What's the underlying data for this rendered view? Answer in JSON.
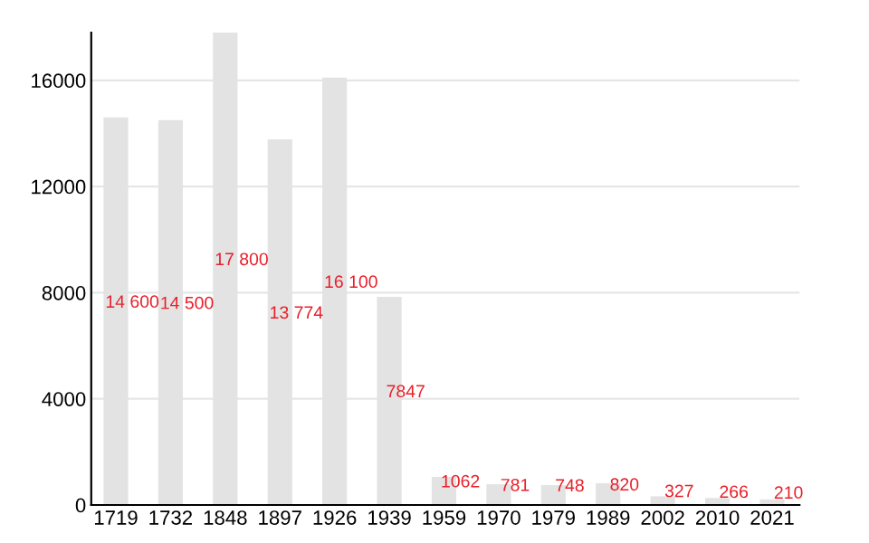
{
  "chart_data": {
    "type": "bar",
    "categories": [
      "1719",
      "1732",
      "1848",
      "1897",
      "1926",
      "1939",
      "1959",
      "1970",
      "1979",
      "1989",
      "2002",
      "2010",
      "2021"
    ],
    "values": [
      14600,
      14500,
      17800,
      13774,
      16100,
      7847,
      1062,
      781,
      748,
      820,
      327,
      266,
      210
    ],
    "value_labels": [
      "14 600",
      "14 500",
      "17 800",
      "13 774",
      "16 100",
      "7847",
      "1062",
      "781",
      "748",
      "820",
      "327",
      "266",
      "210"
    ],
    "color": "#e3e3e3",
    "ylim": [
      0,
      17800
    ],
    "yticks": [
      0,
      4000,
      8000,
      12000,
      16000
    ],
    "grid": "y",
    "legend": false
  }
}
